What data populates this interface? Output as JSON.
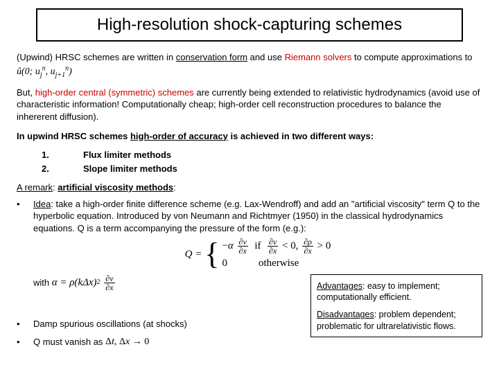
{
  "title": "High-resolution shock-capturing schemes",
  "p1_a": "(Upwind) HRSC schemes are written in ",
  "p1_b": "conservation form",
  "p1_c": " and use ",
  "p1_d": "Riemann solvers",
  "p1_e": " to compute approximations to ",
  "flux_math": "û(0; u<sub>j</sub><sup>n</sup>, u<sub>j+1</sub><sup>n</sup>)",
  "p2_a": "But, ",
  "p2_b": "high-order central (symmetric) schemes",
  "p2_c": " are currently being extended to relativistic hydrodynamics (avoid use of characteristic information! Computationally cheap; high-order cell reconstruction procedures to balance the inhererent diffusion).",
  "p3_a": "In upwind HRSC schemes ",
  "p3_b": "high-order of accuracy",
  "p3_c": " is achieved in two different ways:",
  "methods": [
    {
      "n": "1.",
      "label": "Flux limiter methods"
    },
    {
      "n": "2.",
      "label": "Slope limiter methods"
    }
  ],
  "remark_a": "A remark",
  "remark_b": ": ",
  "remark_c": "artificial viscosity methods",
  "remark_d": ":",
  "idea_u": "Idea",
  "idea_txt": ": take a high-order finite difference scheme (e.g. Lax-Wendroff) and add an \"artificial viscosity\" term Q to the hyperbolic equation. Introduced by von Neumann and Richtmyer (1950) in the classical hydrodynamics equations. Q is a term accompanying the pressure of the form (e.g.):",
  "case1": "−α ∂v/∂x  if  ∂v/∂x < 0, ∂ρ/∂x > 0",
  "case2": "0               otherwise",
  "with": "with ",
  "alpha_eq": "α = ρ(kΔx)² ∂v/∂x",
  "adv_u": "Advantages",
  "adv_txt": ": easy to implement; computationally efficient.",
  "dis_u": "Disadvantages",
  "dis_txt": ": problem dependent; problematic for ultrarelativistic flows.",
  "damp": "Damp spurious oscillations (at shocks)",
  "vanish": "Q must vanish as ",
  "vanish_math": "Δt, Δx → 0",
  "colors": {
    "red": "#cc0000",
    "text": "#000000",
    "border": "#000000"
  }
}
